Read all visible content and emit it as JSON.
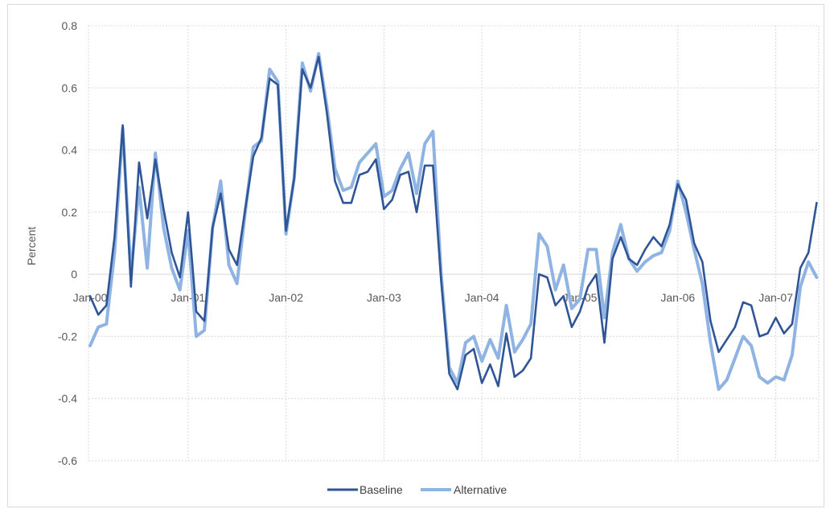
{
  "chart_data": {
    "type": "line",
    "ylabel": "Percent",
    "ylim": [
      -0.6,
      0.8
    ],
    "y_ticks": [
      "0.8",
      "0.6",
      "0.4",
      "0.2",
      "0",
      "-0.2",
      "-0.4",
      "-0.6"
    ],
    "y_tick_values": [
      0.8,
      0.6,
      0.4,
      0.2,
      0,
      -0.2,
      -0.4,
      -0.6
    ],
    "x_ticks": [
      "Jan-00",
      "Jan-01",
      "Jan-02",
      "Jan-03",
      "Jan-04",
      "Jan-05",
      "Jan-06",
      "Jan-07"
    ],
    "x_start": "Jan-00",
    "grid": "dotted",
    "legend_position": "bottom",
    "series": [
      {
        "name": "Baseline",
        "color": "#2f5597",
        "values": [
          -0.07,
          -0.13,
          -0.1,
          0.12,
          0.48,
          -0.04,
          0.36,
          0.18,
          0.37,
          0.21,
          0.07,
          -0.01,
          0.2,
          -0.12,
          -0.15,
          0.15,
          0.26,
          0.08,
          0.03,
          0.21,
          0.38,
          0.44,
          0.63,
          0.61,
          0.14,
          0.31,
          0.66,
          0.6,
          0.7,
          0.52,
          0.3,
          0.23,
          0.23,
          0.32,
          0.33,
          0.37,
          0.21,
          0.24,
          0.32,
          0.33,
          0.2,
          0.35,
          0.35,
          -0.02,
          -0.32,
          -0.37,
          -0.26,
          -0.24,
          -0.35,
          -0.29,
          -0.36,
          -0.19,
          -0.33,
          -0.31,
          -0.27,
          0.0,
          -0.01,
          -0.1,
          -0.07,
          -0.17,
          -0.12,
          -0.04,
          0.0,
          -0.22,
          0.05,
          0.12,
          0.05,
          0.03,
          0.08,
          0.12,
          0.09,
          0.16,
          0.29,
          0.24,
          0.1,
          0.04,
          -0.15,
          -0.25,
          -0.21,
          -0.17,
          -0.09,
          -0.1,
          -0.2,
          -0.19,
          -0.14,
          -0.19,
          -0.16,
          0.02,
          0.07,
          0.23
        ]
      },
      {
        "name": "Alternative",
        "color": "#8fb4e3",
        "values": [
          -0.23,
          -0.17,
          -0.16,
          0.07,
          0.47,
          0.0,
          0.28,
          0.02,
          0.39,
          0.15,
          0.02,
          -0.05,
          0.14,
          -0.2,
          -0.18,
          0.15,
          0.3,
          0.03,
          -0.03,
          0.2,
          0.41,
          0.43,
          0.66,
          0.62,
          0.13,
          0.31,
          0.68,
          0.59,
          0.71,
          0.54,
          0.34,
          0.27,
          0.28,
          0.36,
          0.39,
          0.42,
          0.25,
          0.27,
          0.34,
          0.39,
          0.26,
          0.42,
          0.46,
          0.0,
          -0.3,
          -0.35,
          -0.22,
          -0.2,
          -0.28,
          -0.21,
          -0.27,
          -0.1,
          -0.25,
          -0.21,
          -0.16,
          0.13,
          0.09,
          -0.05,
          0.03,
          -0.11,
          -0.08,
          0.08,
          0.08,
          -0.14,
          0.07,
          0.16,
          0.05,
          0.01,
          0.04,
          0.06,
          0.07,
          0.14,
          0.3,
          0.2,
          0.08,
          -0.03,
          -0.22,
          -0.37,
          -0.34,
          -0.27,
          -0.2,
          -0.23,
          -0.33,
          -0.35,
          -0.33,
          -0.34,
          -0.26,
          -0.04,
          0.04,
          -0.01
        ]
      }
    ]
  }
}
